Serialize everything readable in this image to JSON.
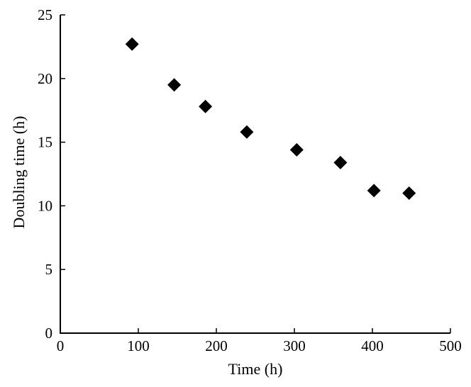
{
  "chart_data": {
    "type": "scatter",
    "title": "",
    "xlabel": "Time (h)",
    "ylabel": "Doubling time (h)",
    "xlim": [
      0,
      500
    ],
    "ylim": [
      0,
      25
    ],
    "xticks": [
      0,
      100,
      200,
      300,
      400,
      500
    ],
    "yticks": [
      0,
      5,
      10,
      15,
      20,
      25
    ],
    "grid": false,
    "legend": false,
    "marker": "filled-diamond",
    "series": [
      {
        "name": "doubling-time",
        "points": [
          {
            "x": 92,
            "y": 22.7
          },
          {
            "x": 146,
            "y": 19.5
          },
          {
            "x": 186,
            "y": 17.8
          },
          {
            "x": 239,
            "y": 15.8
          },
          {
            "x": 303,
            "y": 14.4
          },
          {
            "x": 359,
            "y": 13.4
          },
          {
            "x": 402,
            "y": 11.2
          },
          {
            "x": 447,
            "y": 11.0
          }
        ]
      }
    ],
    "colors": {
      "background": "#ffffff",
      "axis": "#000000",
      "text": "#000000",
      "marker": "#000000"
    }
  }
}
